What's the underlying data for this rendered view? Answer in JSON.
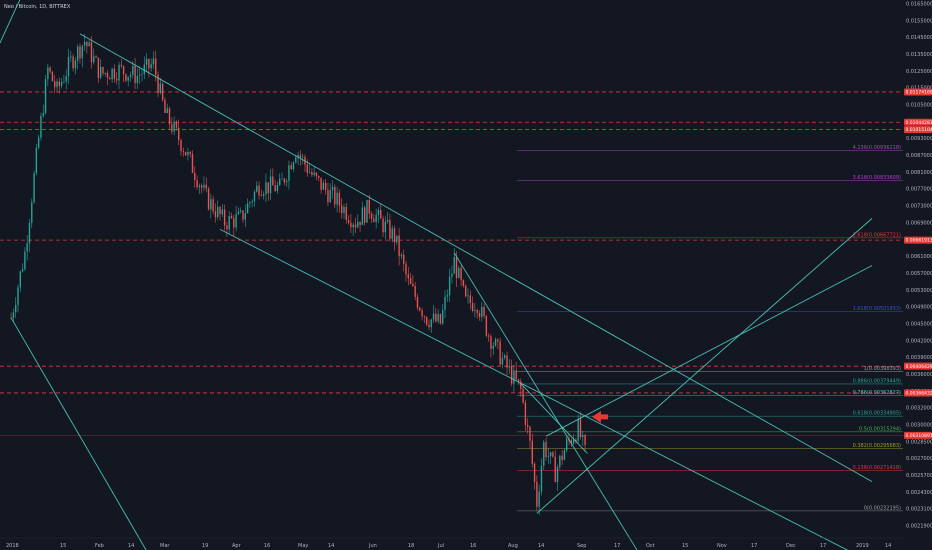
{
  "header": {
    "title": "Neo / Bitcoin, 1D, BITTREX"
  },
  "colors": {
    "background": "#131722",
    "up": "#26a69a",
    "down": "#ef5350",
    "trendline": "#4dd0c4",
    "resistance": "#e53935",
    "axis_text": "#b2b5be"
  },
  "chart_data": {
    "type": "candlestick",
    "title": "Neo / Bitcoin, 1D, BITTREX",
    "y_ticks": [
      "0.01650000",
      "0.01550000",
      "0.01450000",
      "0.01350000",
      "0.01250000",
      "0.01150000",
      "0.01050000",
      "0.00990000",
      "0.00930000",
      "0.00870000",
      "0.00810000",
      "0.00770000",
      "0.00730000",
      "0.00690000",
      "0.00650000",
      "0.00610000",
      "0.00570000",
      "0.00530000",
      "0.00490000",
      "0.00450000",
      "0.00420000",
      "0.00390000",
      "0.00360000",
      "0.00340000",
      "0.00320000",
      "0.00300000",
      "0.00285000",
      "0.00270000",
      "0.00257000",
      "0.00243000",
      "0.00231000",
      "0.00219000"
    ],
    "x_ticks": [
      "2018",
      "15",
      "Feb",
      "14",
      "Mar",
      "19",
      "Apr",
      "16",
      "May",
      "14",
      "Jun",
      "18",
      "Jul",
      "16",
      "Aug",
      "14",
      "Sep",
      "17",
      "Oct",
      "15",
      "Nov",
      "17",
      "Dec",
      "17",
      "2019",
      "14"
    ],
    "price_tags": [
      {
        "label": "0.01174169",
        "price": 0.01174169
      },
      {
        "label": "0.01044281",
        "price": 0.01044281
      },
      {
        "label": "0.01015104",
        "price": 0.01015104
      },
      {
        "label": "0.00661913",
        "price": 0.00661913
      },
      {
        "label": "0.00406429",
        "price": 0.00406429
      },
      {
        "label": "0.00366432",
        "price": 0.00366432
      },
      {
        "label": "0.00310891",
        "price": 0.00310891
      }
    ],
    "horizontal_levels": [
      0.01174169,
      0.01044281,
      0.01015104,
      0.00661913,
      0.00406429,
      0.00366432
    ],
    "fib_levels": [
      {
        "ratio": "4.236",
        "label": "4.236(0.00936218)",
        "price": 0.00936218,
        "color": "#ab47bc"
      },
      {
        "ratio": "3.618",
        "label": "3.618(0.00833609)",
        "price": 0.00833609,
        "color": "#ab47bc"
      },
      {
        "ratio": "2.618",
        "label": "2.618(0.00667721)",
        "price": 0.00667721,
        "color": "#e53935"
      },
      {
        "ratio": "1.618",
        "label": "1.618(0.00501833)",
        "price": 0.00501833,
        "color": "#3f51b5"
      },
      {
        "ratio": "1",
        "label": "1(0.00398393)",
        "price": 0.00398393,
        "color": "#9e9e9e"
      },
      {
        "ratio": "0.886",
        "label": "0.886(0.00379449)",
        "price": 0.00379449,
        "color": "#26a69a"
      },
      {
        "ratio": "0.786",
        "label": "0.786(0.00362827)",
        "price": 0.00362827,
        "color": "#4dd0c4"
      },
      {
        "ratio": "0.618",
        "label": "0.618(0.00334905)",
        "price": 0.00334905,
        "color": "#26a69a"
      },
      {
        "ratio": "0.5",
        "label": "0.5(0.00315294)",
        "price": 0.00315294,
        "color": "#4caf50"
      },
      {
        "ratio": "0.382",
        "label": "0.382(0.00295683)",
        "price": 0.00295683,
        "color": "#9e9d24"
      },
      {
        "ratio": "0.236",
        "label": "0.236(0.00271418)",
        "price": 0.00271418,
        "color": "#e53935"
      },
      {
        "ratio": "0",
        "label": "0(0.00232195)",
        "price": 0.00232195,
        "color": "#9e9e9e"
      }
    ],
    "price_keypoints": [
      {
        "date": "2017-12-29",
        "price": 0.0049
      },
      {
        "date": "2018-01-04",
        "price": 0.0063
      },
      {
        "date": "2018-01-10",
        "price": 0.0098
      },
      {
        "date": "2018-01-14",
        "price": 0.0128
      },
      {
        "date": "2018-01-18",
        "price": 0.0118
      },
      {
        "date": "2018-01-24",
        "price": 0.0132
      },
      {
        "date": "2018-01-30",
        "price": 0.0143
      },
      {
        "date": "2018-02-06",
        "price": 0.0126
      },
      {
        "date": "2018-02-14",
        "price": 0.0128
      },
      {
        "date": "2018-02-22",
        "price": 0.0125
      },
      {
        "date": "2018-03-01",
        "price": 0.0131
      },
      {
        "date": "2018-03-06",
        "price": 0.0108
      },
      {
        "date": "2018-03-14",
        "price": 0.0095
      },
      {
        "date": "2018-03-24",
        "price": 0.0078
      },
      {
        "date": "2018-04-01",
        "price": 0.0071
      },
      {
        "date": "2018-04-08",
        "price": 0.0072
      },
      {
        "date": "2018-04-16",
        "price": 0.0082
      },
      {
        "date": "2018-04-25",
        "price": 0.0081
      },
      {
        "date": "2018-05-02",
        "price": 0.0094
      },
      {
        "date": "2018-05-10",
        "price": 0.0084
      },
      {
        "date": "2018-05-20",
        "price": 0.0077
      },
      {
        "date": "2018-05-28",
        "price": 0.0071
      },
      {
        "date": "2018-06-03",
        "price": 0.0075
      },
      {
        "date": "2018-06-08",
        "price": 0.0071
      },
      {
        "date": "2018-06-14",
        "price": 0.0067
      },
      {
        "date": "2018-06-20",
        "price": 0.0056
      },
      {
        "date": "2018-06-28",
        "price": 0.0049
      },
      {
        "date": "2018-07-04",
        "price": 0.0048
      },
      {
        "date": "2018-07-10",
        "price": 0.0061
      },
      {
        "date": "2018-07-15",
        "price": 0.0052
      },
      {
        "date": "2018-07-20",
        "price": 0.0052
      },
      {
        "date": "2018-07-25",
        "price": 0.0046
      },
      {
        "date": "2018-08-01",
        "price": 0.0041
      },
      {
        "date": "2018-08-08",
        "price": 0.0037
      },
      {
        "date": "2018-08-12",
        "price": 0.003
      },
      {
        "date": "2018-08-15",
        "price": 0.0024
      },
      {
        "date": "2018-08-18",
        "price": 0.003
      },
      {
        "date": "2018-08-23",
        "price": 0.0027
      },
      {
        "date": "2018-08-28",
        "price": 0.003
      },
      {
        "date": "2018-09-02",
        "price": 0.0032
      },
      {
        "date": "2018-09-05",
        "price": 0.0029
      }
    ],
    "trendlines": [
      {
        "p1": {
          "date": "2017-12-08",
          "price": 0.0104
        },
        "p2": {
          "date": "2018-01-04",
          "price": 0.0175
        }
      },
      {
        "p1": {
          "date": "2017-12-29",
          "price": 0.0049
        },
        "p2": {
          "date": "2018-03-01",
          "price": 0.0019
        }
      },
      {
        "p1": {
          "date": "2018-01-28",
          "price": 0.0147
        },
        "p2": {
          "date": "2019-01-08",
          "price": 0.0026
        }
      },
      {
        "p1": {
          "date": "2018-03-30",
          "price": 0.0069
        },
        "p2": {
          "date": "2019-01-08",
          "price": 0.0019
        }
      },
      {
        "p1": {
          "date": "2018-07-10",
          "price": 0.0063
        },
        "p2": {
          "date": "2018-10-01",
          "price": 0.0019
        }
      },
      {
        "p1": {
          "date": "2018-08-15",
          "price": 0.0023
        },
        "p2": {
          "date": "2019-01-08",
          "price": 0.0072
        }
      },
      {
        "p1": {
          "date": "2018-08-19",
          "price": 0.0031
        },
        "p2": {
          "date": "2019-01-08",
          "price": 0.006
        }
      },
      {
        "p1": {
          "date": "2018-08-08",
          "price": 0.0038
        },
        "p2": {
          "date": "2018-09-06",
          "price": 0.0029
        }
      }
    ],
    "arrow": {
      "date": "2018-09-08",
      "price": 0.00334
    },
    "y_scale": "log",
    "grid": false,
    "legend": "none"
  }
}
